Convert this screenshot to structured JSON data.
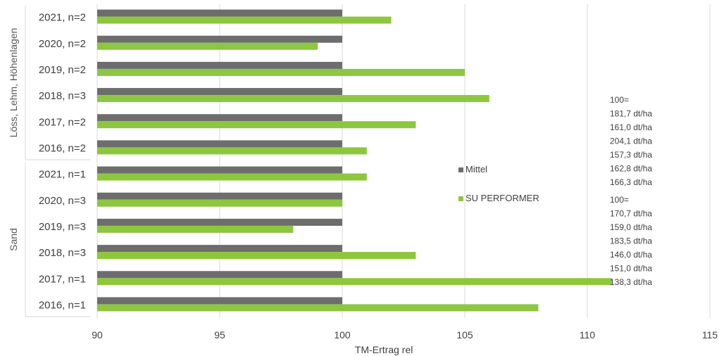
{
  "chart_data": {
    "type": "bar",
    "orientation": "horizontal",
    "xlabel": "TM-Ertrag rel",
    "xlim": [
      90,
      115
    ],
    "xticks": [
      "90",
      "95",
      "100",
      "105",
      "110",
      "115"
    ],
    "grid": true,
    "legend_position": "right",
    "groups": [
      "Löss, Lehm, Höhenlagen",
      "Sand"
    ],
    "categories": [
      "2021, n=2",
      "2020, n=2",
      "2019, n=2",
      "2018, n=3",
      "2017, n=2",
      "2016, n=2",
      "2021, n=1",
      "2020, n=3",
      "2019, n=3",
      "2018, n=3",
      "2017, n=1",
      "2016, n=1"
    ],
    "category_group": [
      0,
      0,
      0,
      0,
      0,
      0,
      1,
      1,
      1,
      1,
      1,
      1
    ],
    "series": [
      {
        "name": "Mittel",
        "color": "#6d6d6d",
        "values": [
          100,
          100,
          100,
          100,
          100,
          100,
          100,
          100,
          100,
          100,
          100,
          100
        ]
      },
      {
        "name": "SU PERFORMER",
        "color": "#8dc63f",
        "values": [
          102,
          99,
          105,
          106,
          103,
          101,
          101,
          100,
          98,
          103,
          111,
          108
        ]
      }
    ],
    "annotations": [
      {
        "lines": [
          "100=",
          "181,7 dt/ha",
          "161,0 dt/ha",
          "204,1 dt/ha",
          "157,3 dt/ha",
          "162,8 dt/ha",
          "166,3 dt/ha"
        ]
      },
      {
        "lines": [
          "100=",
          "170,7 dt/ha",
          "159,0 dt/ha",
          "183,5 dt/ha",
          "146,0 dt/ha",
          "151,0 dt/ha",
          "138,3 dt/ha"
        ]
      }
    ]
  }
}
